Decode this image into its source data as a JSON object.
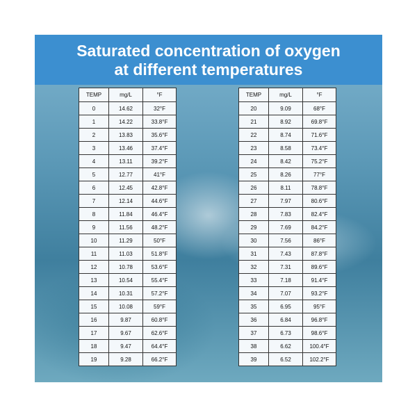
{
  "title": [
    "Saturated concentration of oxygen",
    "at different temperatures"
  ],
  "tables": [
    {
      "header": [
        "TEMP",
        "mg/L",
        "°F"
      ],
      "rows": [
        [
          "0",
          "14.62",
          "32°F"
        ],
        [
          "1",
          "14.22",
          "33.8°F"
        ],
        [
          "2",
          "13.83",
          "35.6°F"
        ],
        [
          "3",
          "13.46",
          "37.4°F"
        ],
        [
          "4",
          "13.11",
          "39.2°F"
        ],
        [
          "5",
          "12.77",
          "41°F"
        ],
        [
          "6",
          "12.45",
          "42.8°F"
        ],
        [
          "7",
          "12.14",
          "44.6°F"
        ],
        [
          "8",
          "11.84",
          "46.4°F"
        ],
        [
          "9",
          "11.56",
          "48.2°F"
        ],
        [
          "10",
          "11.29",
          "50°F"
        ],
        [
          "11",
          "11.03",
          "51.8°F"
        ],
        [
          "12",
          "10.78",
          "53.6°F"
        ],
        [
          "13",
          "10.54",
          "55.4°F"
        ],
        [
          "14",
          "10.31",
          "57.2°F"
        ],
        [
          "15",
          "10.08",
          "59°F"
        ],
        [
          "16",
          "9.87",
          "60.8°F"
        ],
        [
          "17",
          "9.67",
          "62.6°F"
        ],
        [
          "18",
          "9.47",
          "64.4°F"
        ],
        [
          "19",
          "9.28",
          "66.2°F"
        ]
      ]
    },
    {
      "header": [
        "TEMP",
        "mg/L",
        "°F"
      ],
      "rows": [
        [
          "20",
          "9.09",
          "68°F"
        ],
        [
          "21",
          "8.92",
          "69.8°F"
        ],
        [
          "22",
          "8.74",
          "71.6°F"
        ],
        [
          "23",
          "8.58",
          "73.4°F"
        ],
        [
          "24",
          "8.42",
          "75.2°F"
        ],
        [
          "25",
          "8.26",
          "77°F"
        ],
        [
          "26",
          "8.11",
          "78.8°F"
        ],
        [
          "27",
          "7.97",
          "80.6°F"
        ],
        [
          "28",
          "7.83",
          "82.4°F"
        ],
        [
          "29",
          "7.69",
          "84.2°F"
        ],
        [
          "30",
          "7.56",
          "86°F"
        ],
        [
          "31",
          "7.43",
          "87.8°F"
        ],
        [
          "32",
          "7.31",
          "89.6°F"
        ],
        [
          "33",
          "7.18",
          "91.4°F"
        ],
        [
          "34",
          "7.07",
          "93.2°F"
        ],
        [
          "35",
          "6.95",
          "95°F"
        ],
        [
          "36",
          "6.84",
          "96.8°F"
        ],
        [
          "37",
          "6.73",
          "98.6°F"
        ],
        [
          "38",
          "6.62",
          "100.4°F"
        ],
        [
          "39",
          "6.52",
          "102.2°F"
        ]
      ]
    }
  ]
}
